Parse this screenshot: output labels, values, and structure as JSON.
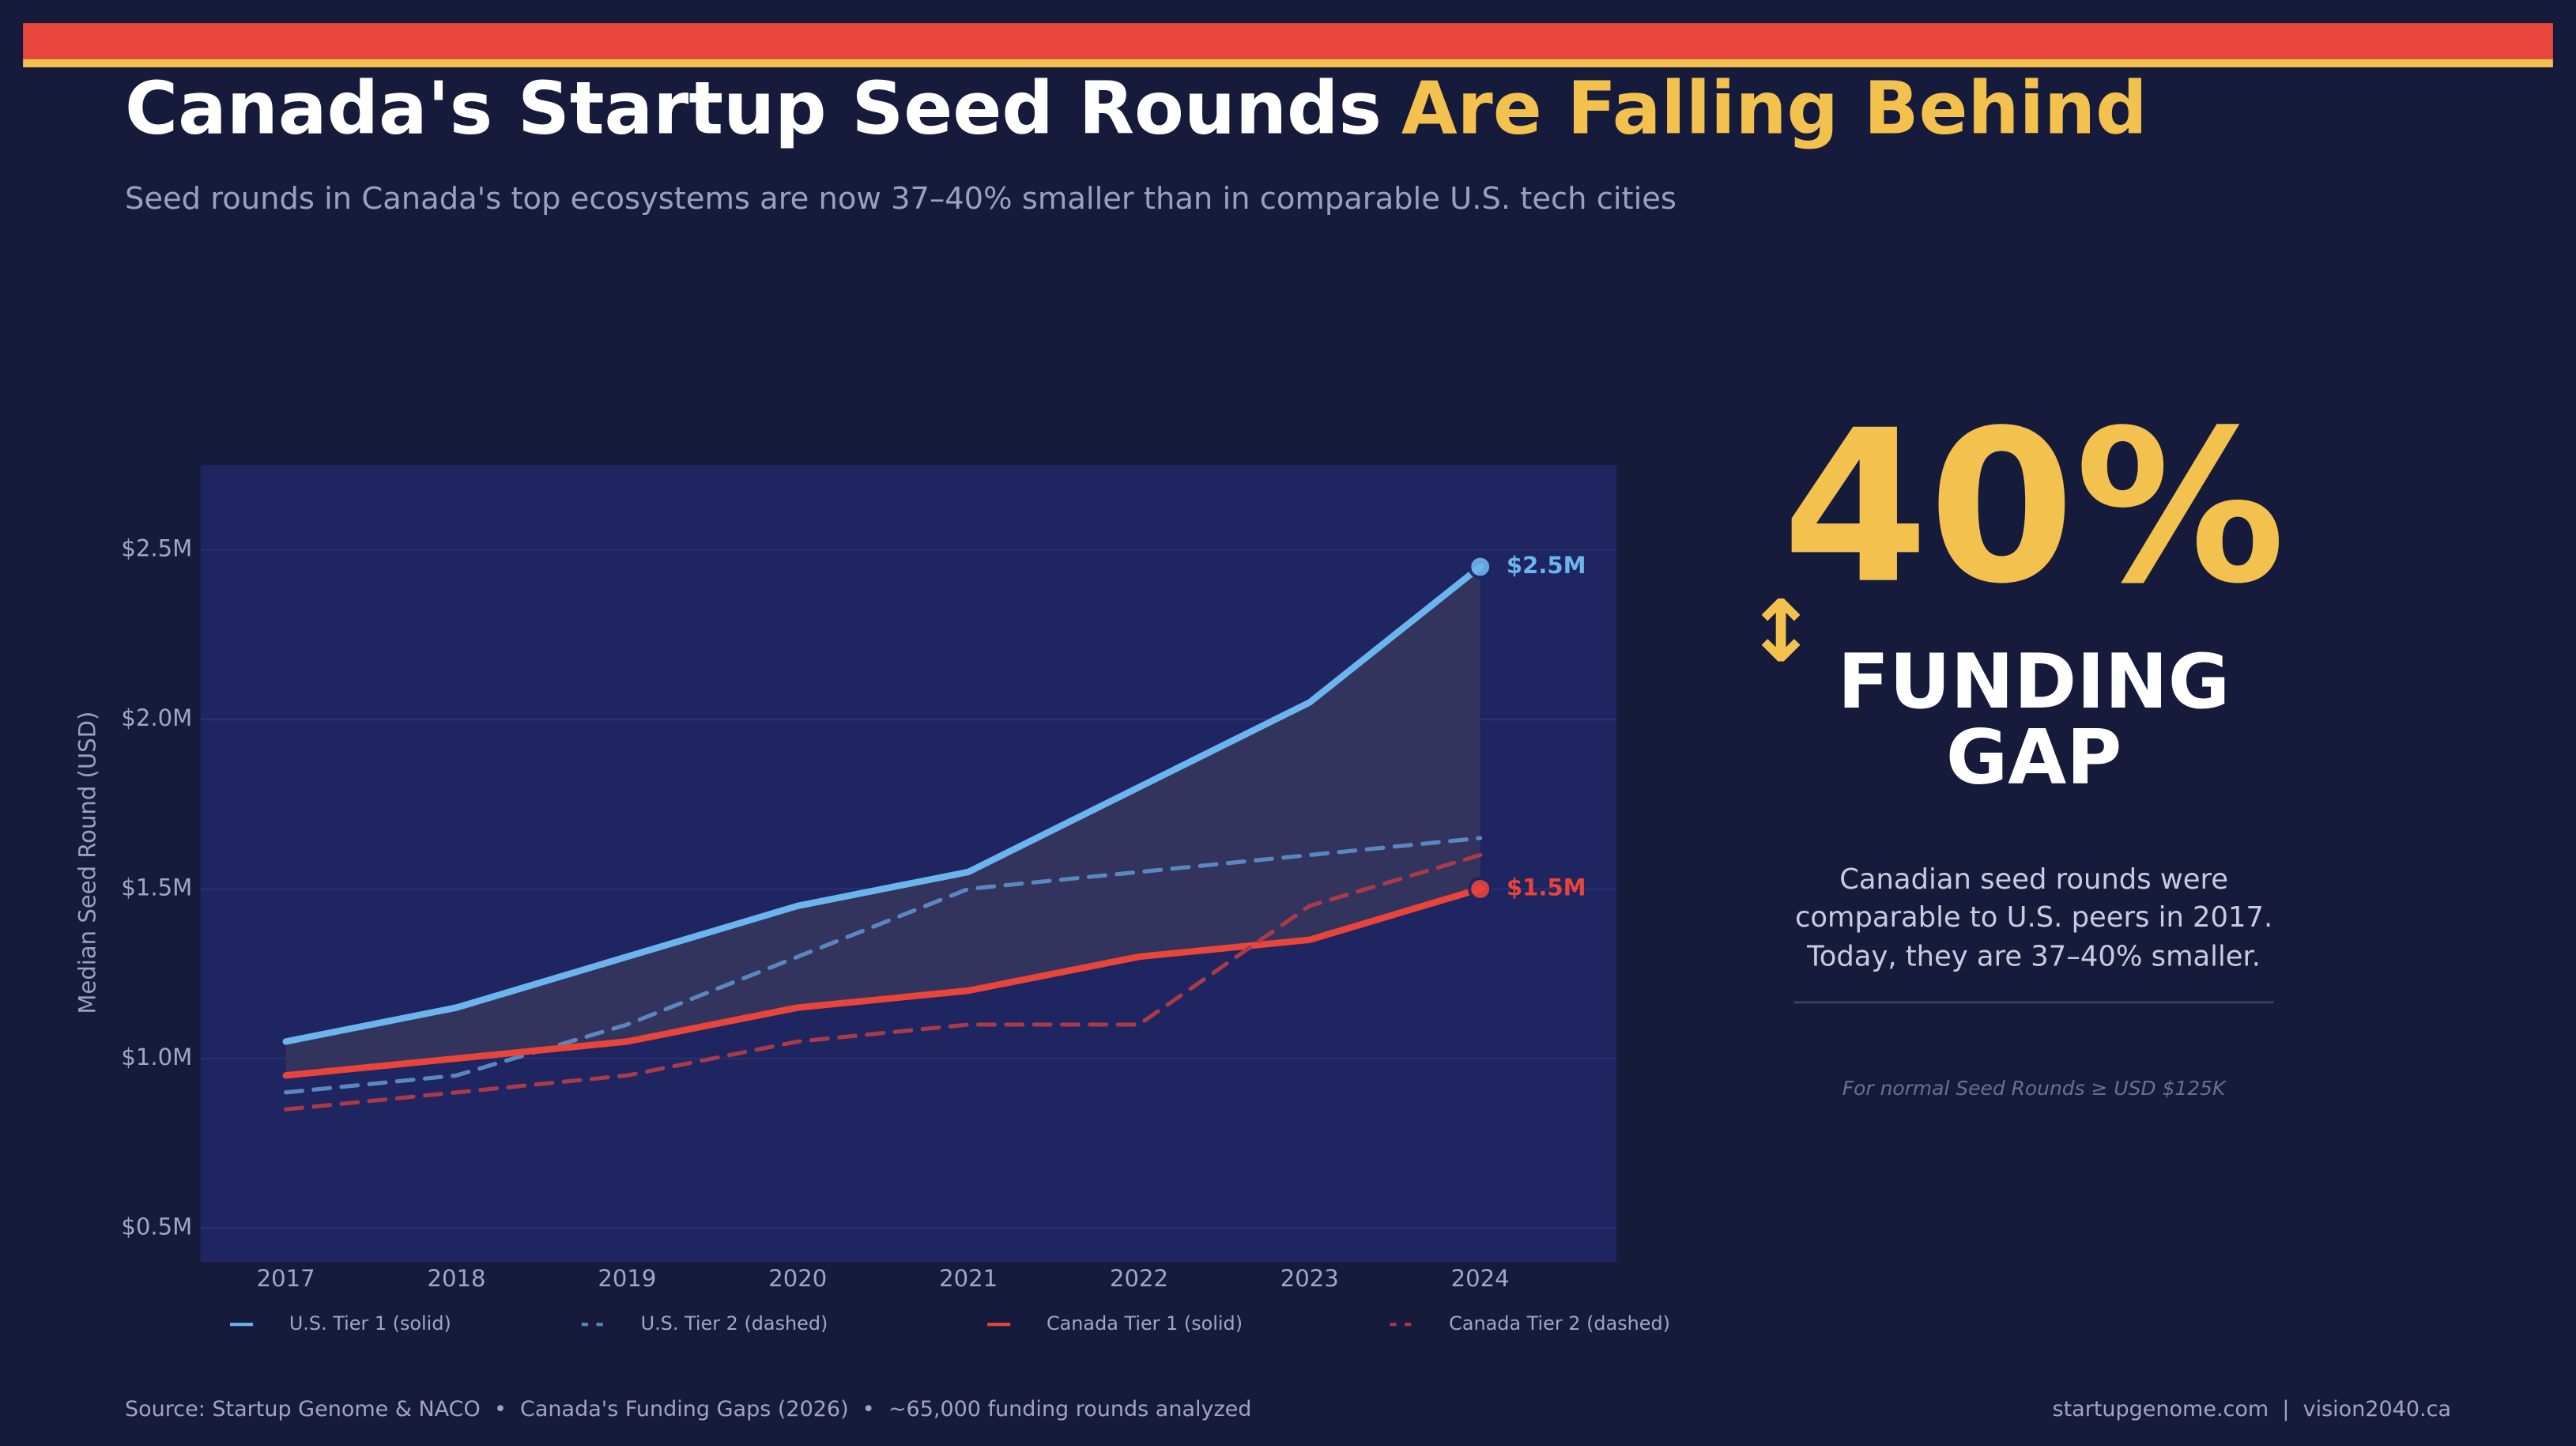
{
  "header": {
    "title_main": "Canada's Startup Seed Rounds",
    "title_highlight": "Are Falling Behind",
    "subtitle": "Seed rounds in Canada's top ecosystems are now 37–40% smaller than in comparable U.S. tech cities"
  },
  "chart_data": {
    "type": "line",
    "y_label": "Median Seed Round (USD)",
    "categories": [
      "2017",
      "2018",
      "2019",
      "2020",
      "2021",
      "2022",
      "2023",
      "2024"
    ],
    "series": [
      {
        "name": "U.S. Tier 1 (solid)",
        "color": "#6cb4ee",
        "dashed": false,
        "values": [
          1050000,
          1150000,
          1300000,
          1450000,
          1550000,
          1800000,
          2050000,
          2450000
        ],
        "value_labels": [
          null,
          null,
          null,
          null,
          null,
          null,
          null,
          "$2.5M"
        ]
      },
      {
        "name": "U.S. Tier 2 (dashed)",
        "color": "#5a87c0",
        "dashed": true,
        "values": [
          900000,
          950000,
          1100000,
          1300000,
          1500000,
          1550000,
          1600000,
          1650000
        ]
      },
      {
        "name": "Canada Tier 1 (solid)",
        "color": "#e8443a",
        "dashed": false,
        "values": [
          950000,
          1000000,
          1050000,
          1150000,
          1200000,
          1300000,
          1350000,
          1500000
        ],
        "value_labels": [
          null,
          null,
          null,
          null,
          null,
          null,
          null,
          "$1.5M"
        ]
      },
      {
        "name": "Canada Tier 2 (dashed)",
        "color": "#a83a4a",
        "dashed": true,
        "values": [
          850000,
          900000,
          950000,
          1050000,
          1100000,
          1100000,
          1450000,
          1600000
        ]
      }
    ],
    "ylim": [
      400000,
      2750000
    ],
    "yticks": [
      {
        "value": 500000,
        "label": "$0.5M"
      },
      {
        "value": 1000000,
        "label": "$1.0M"
      },
      {
        "value": 1500000,
        "label": "$1.5M"
      },
      {
        "value": 2000000,
        "label": "$2.0M"
      },
      {
        "value": 2500000,
        "label": "$2.5M"
      }
    ],
    "grid": true,
    "gap_fill": [
      0,
      2
    ]
  },
  "callout": {
    "big": "40%",
    "arrow": "↕",
    "line1": "FUNDING",
    "line2": "GAP",
    "desc": [
      "Canadian seed rounds were",
      "comparable to U.S. peers in 2017.",
      "Today, they are 37–40% smaller."
    ],
    "note": "For normal Seed Rounds ≥ USD $125K"
  },
  "footer": {
    "source": "Source: Startup Genome & NACO  •  Canada's Funding Gaps (2026)  •  ~65,000 funding rounds analyzed",
    "sites": "startupgenome.com  |  vision2040.ca"
  }
}
